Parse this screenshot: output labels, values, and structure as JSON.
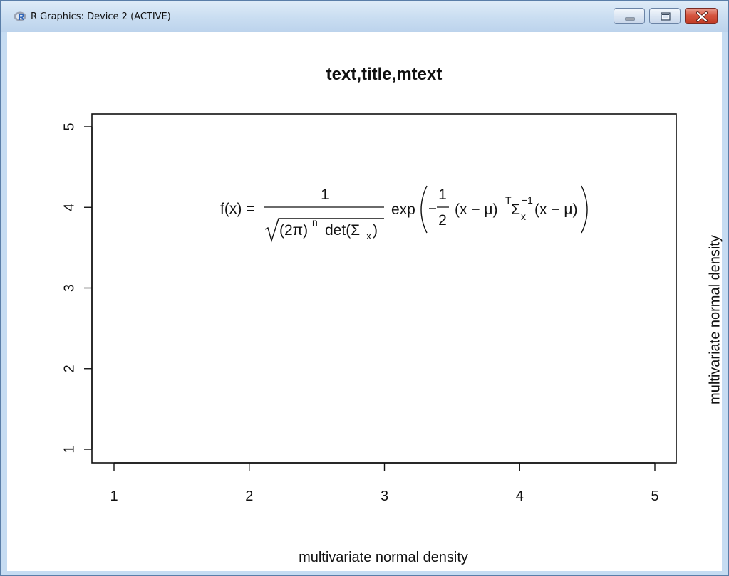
{
  "window": {
    "title": "R Graphics: Device 2 (ACTIVE)",
    "app_icon": "r-logo-icon",
    "buttons": {
      "minimize": "minimize-icon",
      "maximize": "maximize-icon",
      "close": "close-icon"
    }
  },
  "plot": {
    "title": "text,title,mtext",
    "xlabel": "multivariate normal density",
    "right_mtext": "multivariate normal density"
  },
  "formula": {
    "lhs": "f(x) =",
    "numerator": "1",
    "radicand_base": "(2π)",
    "radicand_exp": "n",
    "det": "det(Σ",
    "det_sub": "x",
    "det_close": ")",
    "exp": "exp",
    "half_num": "1",
    "half_den": "2",
    "vec": "(x − μ)",
    "transpose": "T",
    "sigma": "Σ",
    "sigma_sub": "x",
    "sigma_sup": "−1",
    "vec2": "(x − μ)"
  },
  "chart_data": {
    "type": "scatter",
    "title": "text,title,mtext",
    "xlabel": "multivariate normal density",
    "ylabel": "",
    "xlim": [
      1,
      5
    ],
    "ylim": [
      1,
      5
    ],
    "x_ticks": [
      "1",
      "2",
      "3",
      "4",
      "5"
    ],
    "y_ticks": [
      "1",
      "2",
      "3",
      "4",
      "5"
    ],
    "points": [],
    "grid": false,
    "annotations": [
      {
        "x": 3,
        "y": 4,
        "text": "f(x) = 1/√((2π)^n det(Σx)) exp(−1/2 (x−μ)^T Σx^−1 (x−μ))"
      }
    ]
  }
}
